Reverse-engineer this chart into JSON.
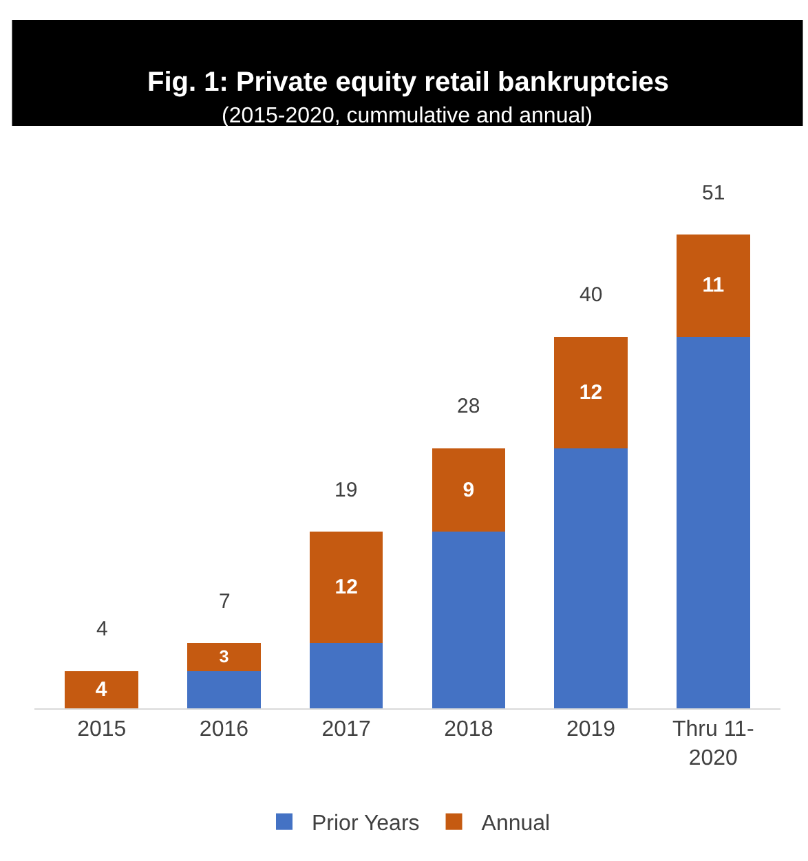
{
  "chart_data": {
    "type": "bar",
    "title": "Fig. 1: Private equity retail bankruptcies",
    "subtitle": "(2015-2020, cummulative and annual)",
    "categories": [
      "2015",
      "2016",
      "2017",
      "2018",
      "2019",
      "Thru 11-2020"
    ],
    "stacked": true,
    "legend": "bottom",
    "tick_labels": "x",
    "series": [
      {
        "name": "Prior Years",
        "color": "#4472c4",
        "values": [
          0,
          4,
          7,
          19,
          28,
          40
        ]
      },
      {
        "name": "Annual",
        "color": "#c55a11",
        "values": [
          4,
          3,
          12,
          9,
          12,
          11
        ],
        "value_labels": [
          "4",
          "3",
          "12",
          "9",
          "12",
          "11"
        ]
      }
    ],
    "totals": [
      "4",
      "7",
      "19",
      "28",
      "40",
      "51"
    ]
  }
}
